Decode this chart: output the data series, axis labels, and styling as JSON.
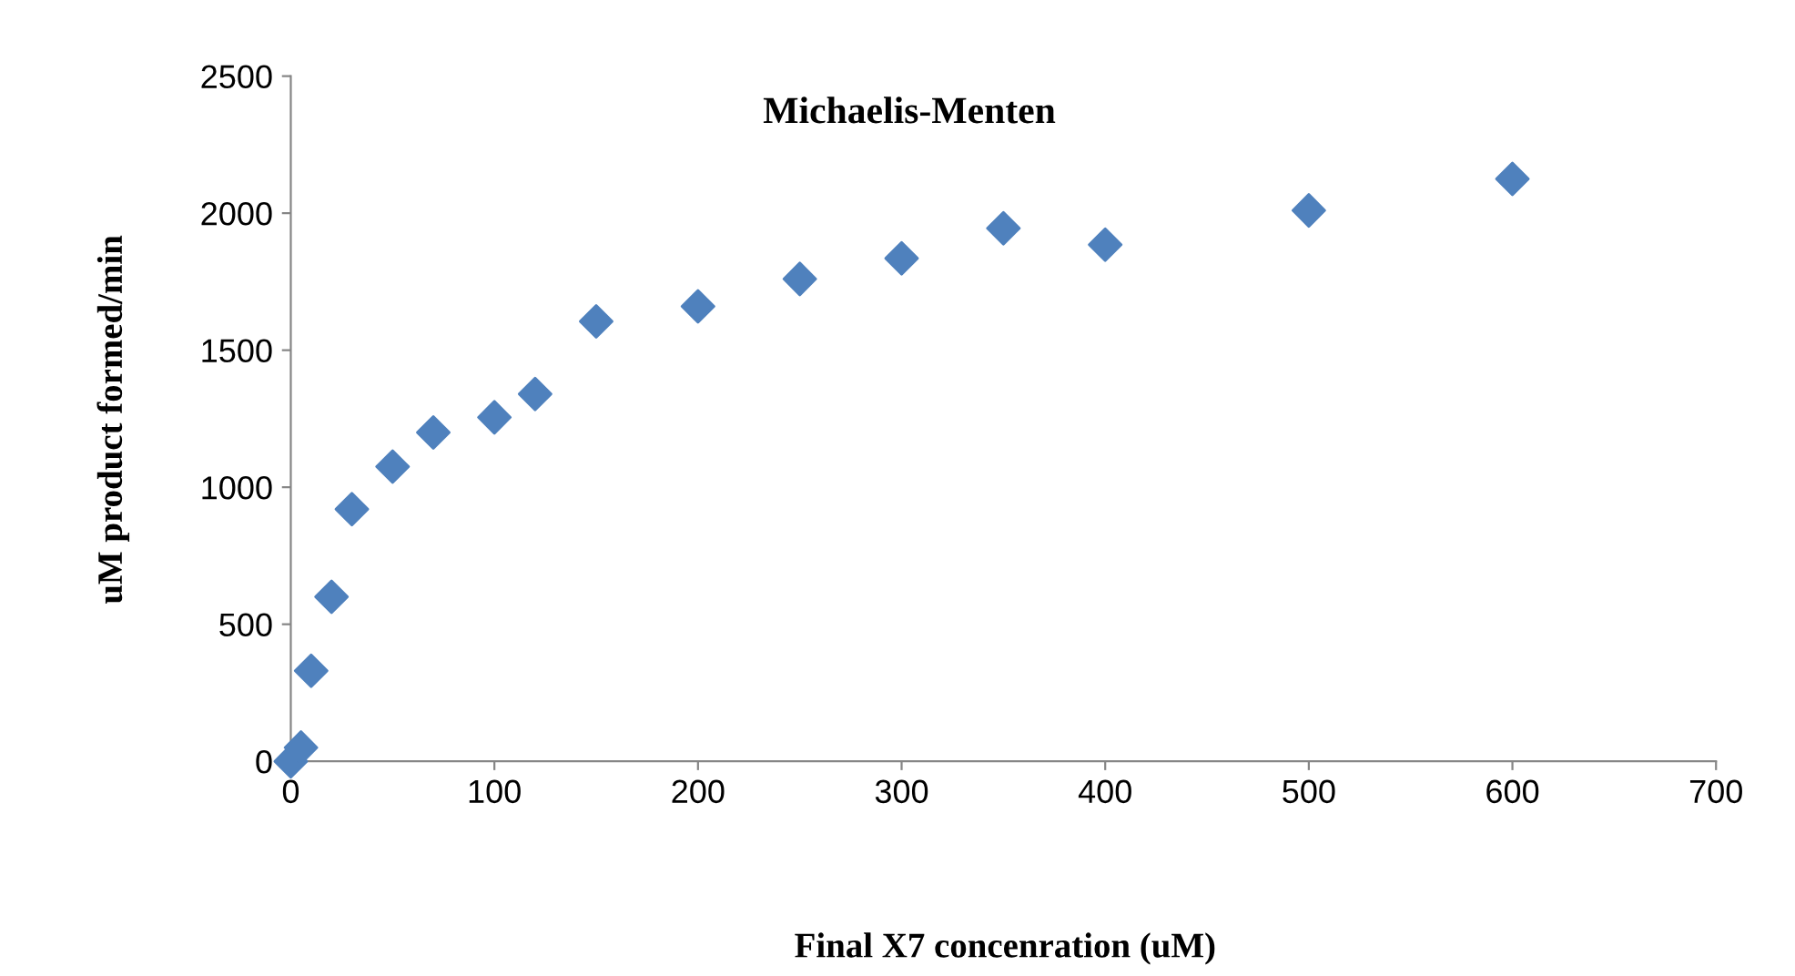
{
  "chart_data": {
    "type": "scatter",
    "title": "Michaelis-Menten",
    "xlabel": "Final X7 concenration (uM)",
    "ylabel": "uM product formed/min",
    "x": [
      0,
      5,
      10,
      20,
      30,
      50,
      70,
      100,
      120,
      150,
      200,
      250,
      300,
      350,
      400,
      500,
      600
    ],
    "series": [
      {
        "color": "#4f81bd",
        "values": [
          0,
          50,
          330,
          600,
          920,
          1075,
          1200,
          1255,
          1340,
          1605,
          1660,
          1760,
          1835,
          1945,
          1885,
          2010,
          2125
        ]
      }
    ],
    "xlim": [
      0,
      700
    ],
    "ylim": [
      0,
      2500
    ],
    "xticks": [
      0,
      100,
      200,
      300,
      400,
      500,
      600,
      700
    ],
    "yticks": [
      0,
      500,
      1000,
      1500,
      2000,
      2500
    ],
    "marker": "diamond",
    "grid": false,
    "legend": false
  }
}
